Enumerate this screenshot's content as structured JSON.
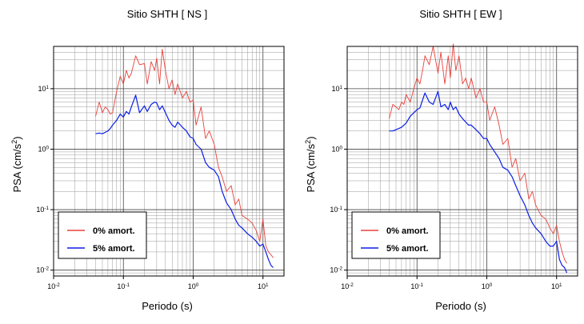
{
  "chart_data": [
    {
      "type": "line",
      "title": "Sitio SHTH [ NS ]",
      "xlabel": "Periodo (s)",
      "ylabel": "PSA (cm/s2)",
      "xscale": "log",
      "yscale": "log",
      "xlim": [
        0.01,
        20
      ],
      "ylim": [
        0.008,
        50
      ],
      "grid": true,
      "legend_position": "bottom-left",
      "x_ticks": [
        "10-2",
        "10-1",
        "100",
        "101"
      ],
      "y_ticks": [
        "10-2",
        "10-1",
        "100",
        "101"
      ],
      "series": [
        {
          "name": "0% amort.",
          "color": "#e8423c",
          "x": [
            0.04,
            0.045,
            0.05,
            0.055,
            0.06,
            0.065,
            0.07,
            0.08,
            0.09,
            0.1,
            0.11,
            0.12,
            0.13,
            0.15,
            0.17,
            0.2,
            0.22,
            0.25,
            0.28,
            0.3,
            0.33,
            0.36,
            0.4,
            0.45,
            0.5,
            0.55,
            0.6,
            0.7,
            0.8,
            0.9,
            1.0,
            1.1,
            1.3,
            1.5,
            1.7,
            2.0,
            2.3,
            2.6,
            3.0,
            3.5,
            4.0,
            4.5,
            5.0,
            6.0,
            7.0,
            8.0,
            9.0,
            10.0,
            11.0,
            12.0,
            13.0,
            14.0
          ],
          "values": [
            3.5,
            6,
            4,
            5,
            4.5,
            3.8,
            4,
            9,
            16,
            12,
            20,
            15,
            18,
            35,
            25,
            26,
            12,
            28,
            20,
            32,
            12,
            45,
            20,
            10,
            14,
            8,
            12,
            7,
            9,
            6,
            6.5,
            2.5,
            5,
            1.5,
            2,
            1.2,
            0.5,
            0.35,
            0.2,
            0.25,
            0.12,
            0.15,
            0.08,
            0.07,
            0.06,
            0.045,
            0.03,
            0.07,
            0.025,
            0.02,
            0.018,
            0.016
          ]
        },
        {
          "name": "5% amort.",
          "color": "#0b1ee6",
          "x": [
            0.04,
            0.045,
            0.05,
            0.055,
            0.06,
            0.065,
            0.07,
            0.08,
            0.09,
            0.1,
            0.11,
            0.12,
            0.13,
            0.15,
            0.17,
            0.2,
            0.22,
            0.25,
            0.28,
            0.3,
            0.33,
            0.36,
            0.4,
            0.45,
            0.5,
            0.55,
            0.6,
            0.7,
            0.8,
            0.9,
            1.0,
            1.1,
            1.3,
            1.5,
            1.7,
            2.0,
            2.3,
            2.6,
            3.0,
            3.5,
            4.0,
            4.5,
            5.0,
            6.0,
            7.0,
            8.0,
            9.0,
            10.0,
            11.0,
            12.0,
            13.0,
            14.0
          ],
          "values": [
            1.8,
            1.85,
            1.8,
            1.9,
            2.0,
            2.2,
            2.5,
            3.0,
            3.8,
            3.4,
            4.2,
            3.8,
            5.0,
            7.8,
            4.0,
            5.2,
            4.2,
            5.5,
            6.0,
            5.8,
            4.5,
            5.2,
            4.0,
            3.0,
            2.5,
            2.3,
            2.8,
            2.3,
            2.0,
            1.6,
            1.5,
            1.2,
            1.0,
            0.6,
            0.5,
            0.45,
            0.35,
            0.2,
            0.13,
            0.1,
            0.07,
            0.055,
            0.05,
            0.04,
            0.035,
            0.03,
            0.025,
            0.027,
            0.02,
            0.015,
            0.012,
            0.011
          ]
        }
      ]
    },
    {
      "type": "line",
      "title": "Sitio SHTH [ EW ]",
      "xlabel": "Periodo (s)",
      "ylabel": "PSA (cm/s2)",
      "xscale": "log",
      "yscale": "log",
      "xlim": [
        0.01,
        20
      ],
      "ylim": [
        0.008,
        50
      ],
      "grid": true,
      "legend_position": "bottom-left",
      "x_ticks": [
        "10-2",
        "10-1",
        "100",
        "101"
      ],
      "y_ticks": [
        "10-2",
        "10-1",
        "100",
        "101"
      ],
      "series": [
        {
          "name": "0% amort.",
          "color": "#e8423c",
          "x": [
            0.04,
            0.045,
            0.05,
            0.055,
            0.06,
            0.065,
            0.07,
            0.08,
            0.09,
            0.1,
            0.11,
            0.12,
            0.13,
            0.15,
            0.17,
            0.2,
            0.22,
            0.25,
            0.28,
            0.3,
            0.33,
            0.36,
            0.4,
            0.45,
            0.5,
            0.55,
            0.6,
            0.7,
            0.8,
            0.9,
            1.0,
            1.1,
            1.3,
            1.5,
            1.7,
            2.0,
            2.3,
            2.6,
            3.0,
            3.5,
            4.0,
            4.5,
            5.0,
            6.0,
            7.0,
            8.0,
            9.0,
            10.0,
            11.0,
            12.0,
            13.0,
            14.0
          ],
          "values": [
            3.2,
            5.5,
            5,
            4.5,
            6,
            5.5,
            8,
            6,
            10,
            15,
            12,
            20,
            35,
            25,
            50,
            18,
            40,
            12,
            35,
            15,
            55,
            20,
            35,
            12,
            15,
            10,
            15,
            7,
            10,
            6,
            6,
            3,
            5,
            2.5,
            1.2,
            1.5,
            0.5,
            0.7,
            0.3,
            0.4,
            0.15,
            0.2,
            0.12,
            0.08,
            0.07,
            0.05,
            0.04,
            0.055,
            0.03,
            0.02,
            0.015,
            0.013
          ]
        },
        {
          "name": "5% amort.",
          "color": "#0b1ee6",
          "x": [
            0.04,
            0.045,
            0.05,
            0.055,
            0.06,
            0.065,
            0.07,
            0.08,
            0.09,
            0.1,
            0.11,
            0.12,
            0.13,
            0.15,
            0.17,
            0.2,
            0.22,
            0.25,
            0.28,
            0.3,
            0.33,
            0.36,
            0.4,
            0.45,
            0.5,
            0.55,
            0.6,
            0.7,
            0.8,
            0.9,
            1.0,
            1.1,
            1.3,
            1.5,
            1.7,
            2.0,
            2.3,
            2.6,
            3.0,
            3.5,
            4.0,
            4.5,
            5.0,
            6.0,
            7.0,
            8.0,
            9.0,
            10.0,
            11.0,
            12.0,
            13.0,
            14.0
          ],
          "values": [
            2.0,
            2.0,
            2.1,
            2.2,
            2.3,
            2.5,
            2.7,
            3.5,
            4.0,
            4.5,
            4.8,
            6.5,
            8.5,
            6.0,
            5.5,
            9.0,
            5.0,
            5.5,
            4.5,
            6.0,
            4.5,
            5.0,
            3.8,
            3.2,
            2.8,
            2.5,
            2.5,
            2.1,
            1.8,
            1.5,
            1.5,
            1.2,
            0.9,
            0.7,
            0.5,
            0.45,
            0.35,
            0.25,
            0.17,
            0.12,
            0.08,
            0.06,
            0.05,
            0.04,
            0.03,
            0.025,
            0.025,
            0.03,
            0.015,
            0.012,
            0.011,
            0.009
          ]
        }
      ]
    }
  ]
}
